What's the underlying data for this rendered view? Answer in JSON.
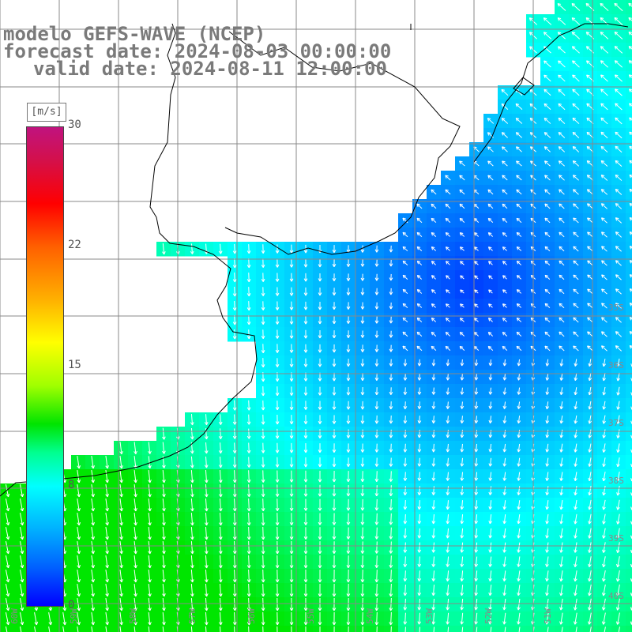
{
  "title": {
    "line1": "modelo GEFS-WAVE (NCEP)",
    "line2": "forecast date: 2024-08-03 00:00:00",
    "line3": "valid date: 2024-08-11 12:00:00"
  },
  "colorbar": {
    "unit": "[m/s]",
    "ticks": [
      {
        "label": "30",
        "value": 30
      },
      {
        "label": "22",
        "value": 22
      },
      {
        "label": "15",
        "value": 15
      },
      {
        "label": "8",
        "value": 8
      },
      {
        "label": "0",
        "value": 0
      }
    ]
  },
  "lat_labels": [
    "35S",
    "36S",
    "37S",
    "38S",
    "39S",
    "40S"
  ],
  "lon_labels": [
    "60W",
    "59W",
    "58W",
    "57W",
    "56W",
    "55W",
    "54W",
    "53W",
    "52W",
    "51W"
  ],
  "colors": {
    "title": "#7a7a7a",
    "land": "#ffffff",
    "grid": "#888888",
    "arrows": "#ffffff"
  }
}
